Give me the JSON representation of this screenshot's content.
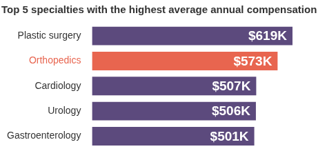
{
  "chart_data": {
    "type": "bar",
    "orientation": "horizontal",
    "title": "Top 5 specialties with the highest average annual compensation",
    "categories": [
      "Plastic surgery",
      "Orthopedics",
      "Cardiology",
      "Urology",
      "Gastroenterology"
    ],
    "values": [
      619,
      573,
      507,
      506,
      501
    ],
    "value_labels": [
      "$619K",
      "$573K",
      "$507K",
      "$506K",
      "$501K"
    ],
    "colors": [
      "#5c4a7d",
      "#e8654f",
      "#5c4a7d",
      "#5c4a7d",
      "#5c4a7d"
    ],
    "xlim": [
      0,
      700
    ],
    "data_labels": true,
    "grid": false,
    "tick_labels": "y"
  }
}
